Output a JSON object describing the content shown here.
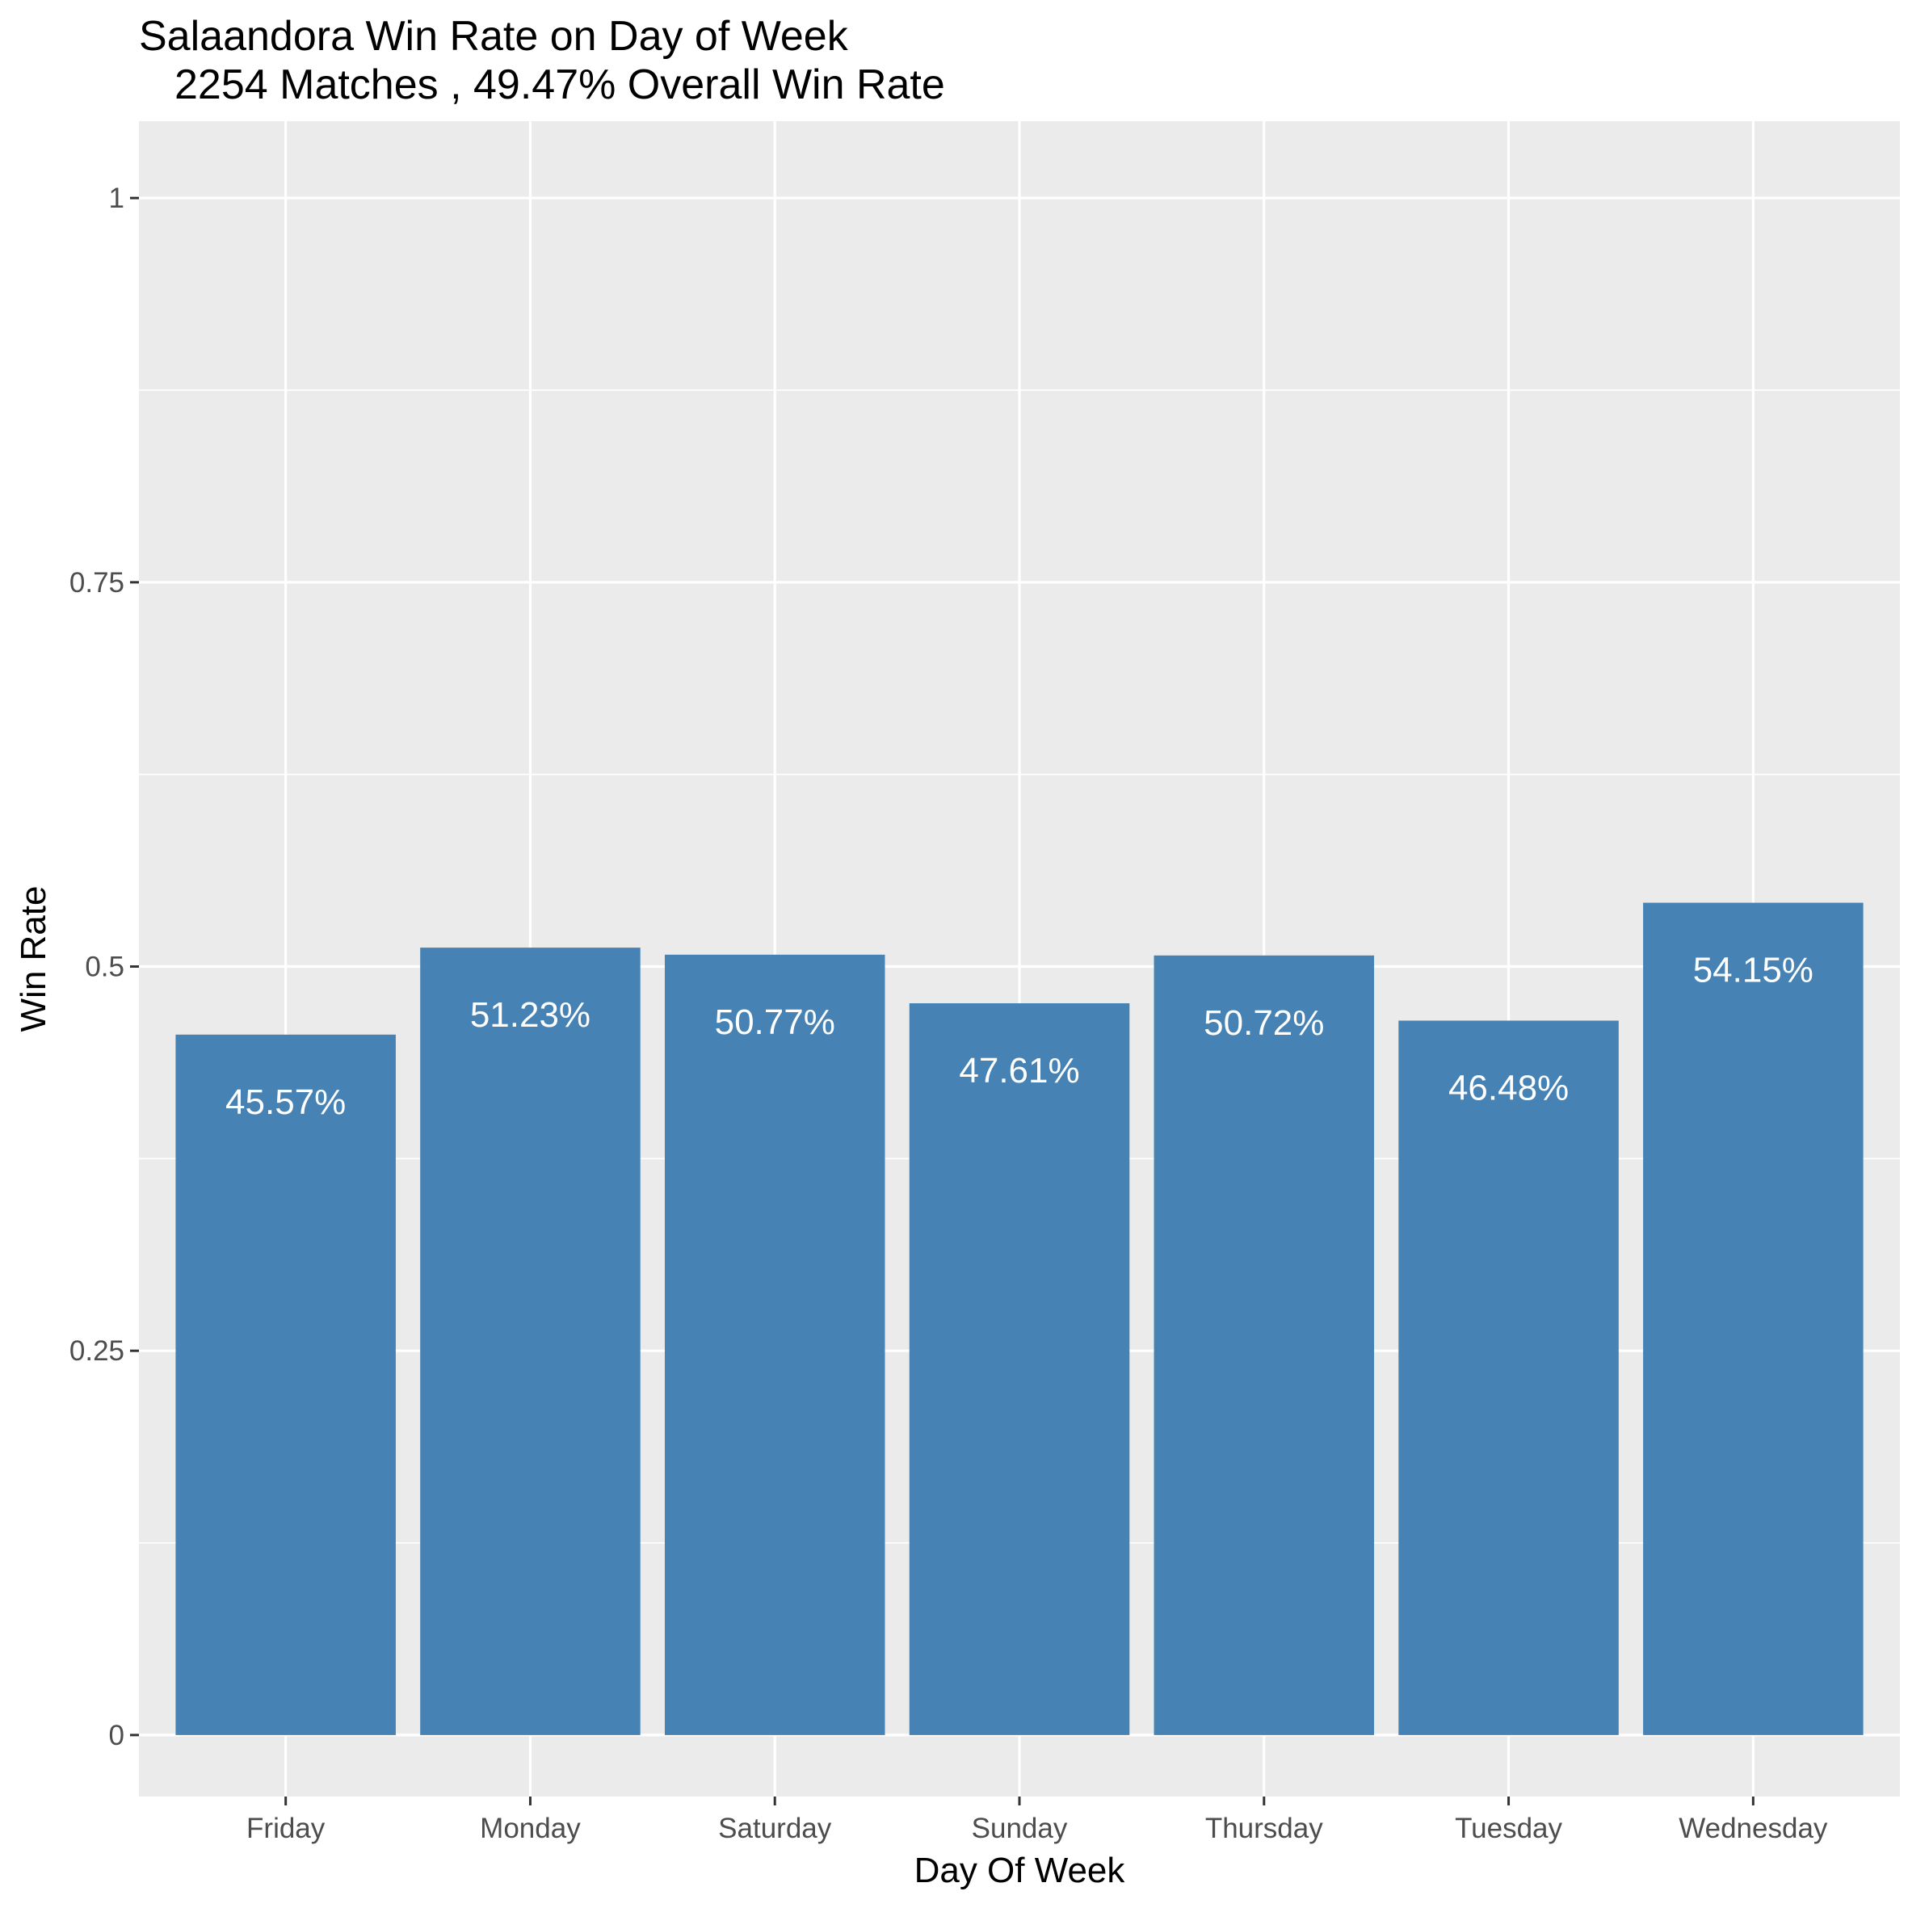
{
  "chart_data": {
    "type": "bar",
    "title": "Salaandora Win Rate on Day of Week",
    "subtitle": "2254 Matches , 49.47% Overall Win Rate",
    "xlabel": "Day Of Week",
    "ylabel": "Win Rate",
    "categories": [
      "Friday",
      "Monday",
      "Saturday",
      "Sunday",
      "Thursday",
      "Tuesday",
      "Wednesday"
    ],
    "values": [
      0.4557,
      0.5123,
      0.5077,
      0.4761,
      0.5072,
      0.4648,
      0.5415
    ],
    "value_labels": [
      "45.57%",
      "51.23%",
      "50.77%",
      "47.61%",
      "50.72%",
      "46.48%",
      "54.15%"
    ],
    "ylim": [
      -0.04,
      1.05
    ],
    "y_ticks": [
      0,
      0.25,
      0.5,
      0.75,
      1
    ],
    "y_tick_labels": [
      "0",
      "0.25",
      "0.5",
      "0.75",
      "1"
    ],
    "y_minor_ticks": [
      0.125,
      0.375,
      0.625,
      0.875
    ],
    "grid": true,
    "legend": "none",
    "colors": {
      "bar": "#4682b4",
      "panel": "#ebebeb",
      "grid": "#ffffff",
      "bar_label": "#ffffff"
    }
  }
}
